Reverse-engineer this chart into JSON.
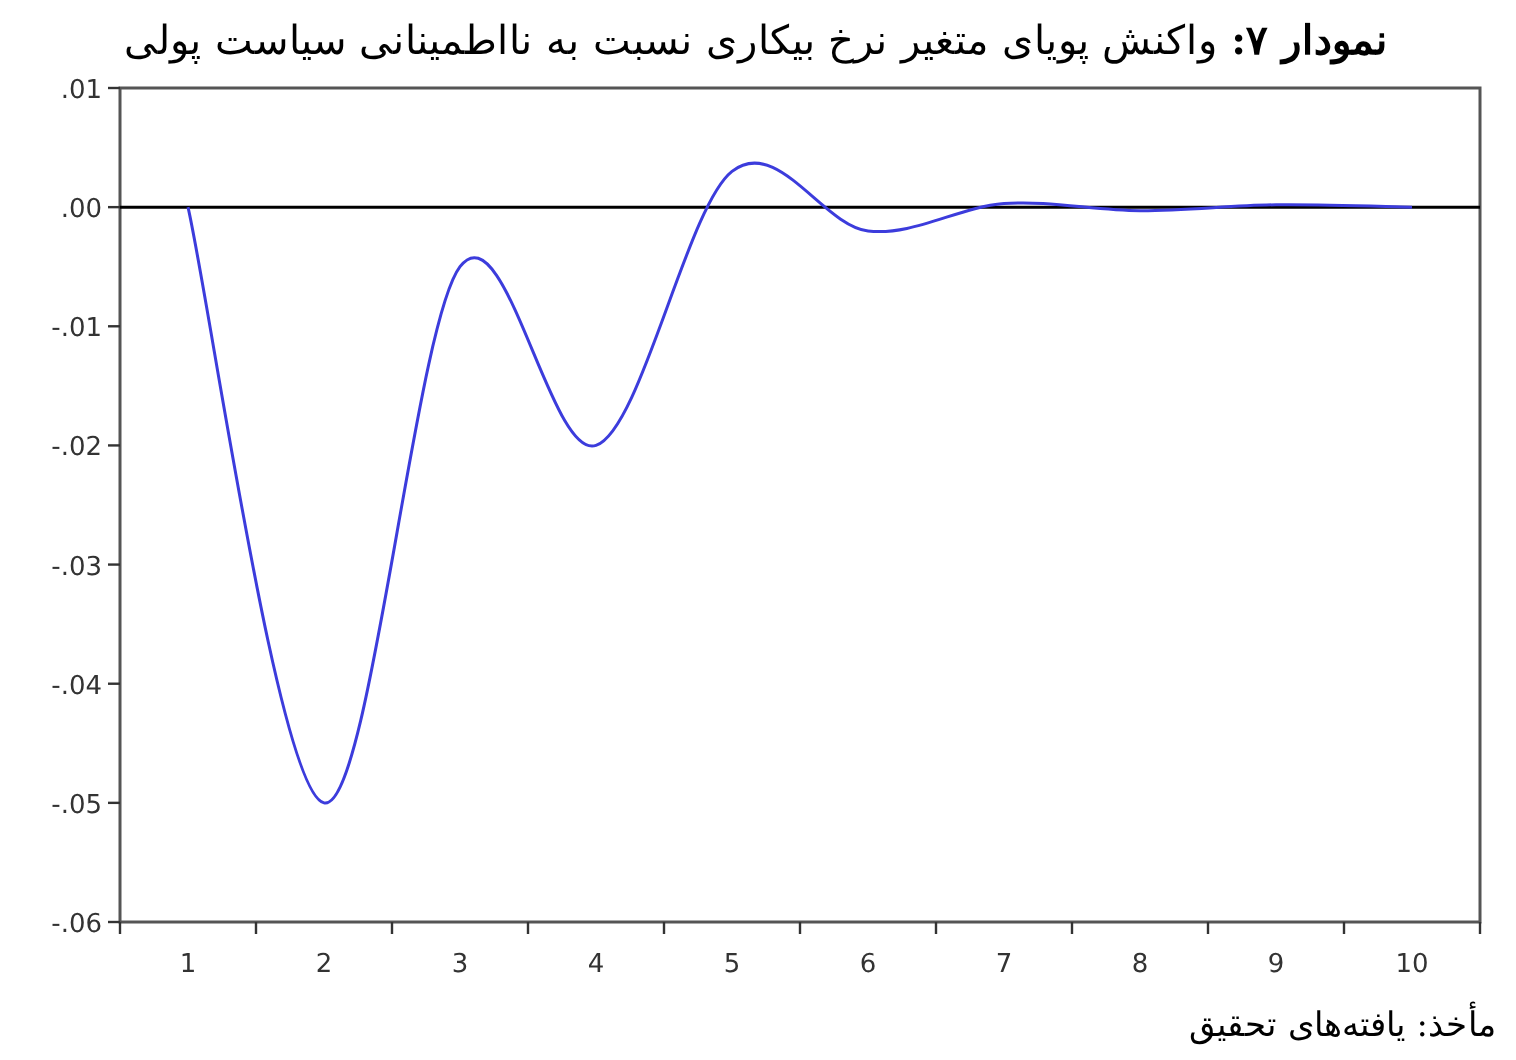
{
  "chart_data": {
    "type": "line",
    "title": "نمودار ۷: واکنش پویای متغیر نرخ بیکاری نسبت به نااطمینانی سیاست پولی",
    "categories": [
      "1",
      "2",
      "3",
      "4",
      "5",
      "6",
      "7",
      "8",
      "9",
      "10"
    ],
    "series": [
      {
        "color": "#3c3cdc",
        "values": [
          0.0,
          -0.05,
          -0.005,
          -0.02,
          0.003,
          -0.002,
          0.0003,
          -0.0003,
          0.0002,
          0.0
        ]
      }
    ],
    "ylim": [
      -0.06,
      0.01
    ],
    "yticks": [
      {
        "value": 0.01,
        "label": ".01"
      },
      {
        "value": 0.0,
        "label": ".00"
      },
      {
        "value": -0.01,
        "label": "-.01"
      },
      {
        "value": -0.02,
        "label": "-.02"
      },
      {
        "value": -0.03,
        "label": "-.03"
      },
      {
        "value": -0.04,
        "label": "-.04"
      },
      {
        "value": -0.05,
        "label": "-.05"
      },
      {
        "value": -0.06,
        "label": "-.06"
      }
    ],
    "ref_lines": [
      {
        "axis": "y",
        "value": 0.0,
        "color": "#000000"
      }
    ],
    "annotations": [
      "مأخذ: یافته‌های تحقیق"
    ]
  }
}
